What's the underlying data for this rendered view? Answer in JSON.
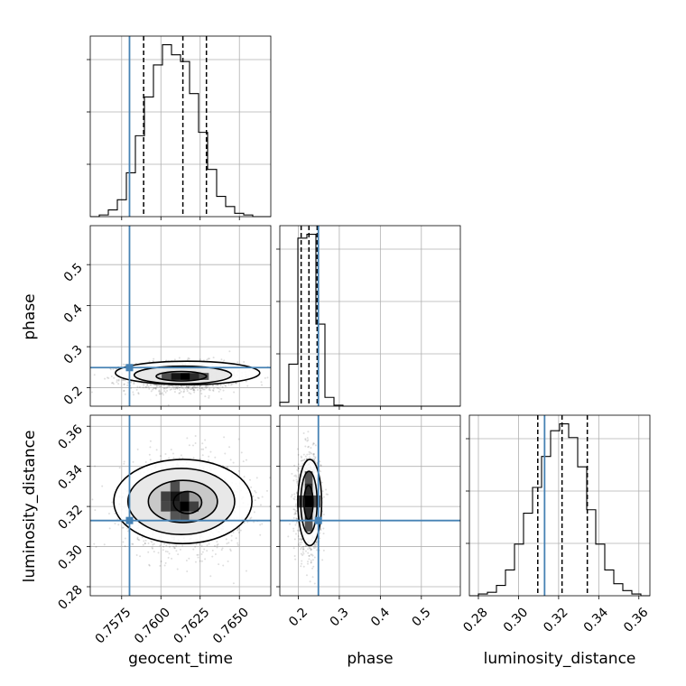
{
  "chart_data": {
    "type": "corner",
    "grid": true,
    "parameters": [
      "geocent_time",
      "phase",
      "luminosity_distance"
    ],
    "colors": {
      "truth": "#4682b4",
      "hist": "#000000",
      "grid": "#b0b0b0",
      "samples": "#000000"
    },
    "truths": {
      "geocent_time": 0.758,
      "phase": 0.249,
      "luminosity_distance": 0.313
    },
    "quantiles": {
      "geocent_time": [
        0.7589,
        0.7614,
        0.7629
      ],
      "phase": [
        0.207,
        0.226,
        0.246
      ],
      "luminosity_distance": [
        0.3096,
        0.3217,
        0.3343
      ]
    },
    "ranges": {
      "geocent_time": [
        0.7555,
        0.767
      ],
      "phase": [
        0.155,
        0.595
      ],
      "luminosity_distance": [
        0.2755,
        0.3655
      ]
    },
    "ticks": {
      "geocent_time": {
        "values": [
          0.7575,
          0.76,
          0.7625,
          0.765
        ],
        "labels": [
          "0.7575",
          "0.7600",
          "0.7625",
          "0.7650"
        ]
      },
      "phase_x": {
        "values": [
          0.2,
          0.3,
          0.4,
          0.5
        ],
        "labels": [
          "0.2",
          "0.3",
          "0.4",
          "0.5"
        ]
      },
      "phase_y": {
        "values": [
          0.2,
          0.3,
          0.4,
          0.5
        ],
        "labels": [
          "0.2",
          "0.3",
          "0.4",
          "0.5"
        ]
      },
      "luminosity_distance": {
        "values": [
          0.28,
          0.3,
          0.32,
          0.34,
          0.36
        ],
        "labels": [
          "0.28",
          "0.30",
          "0.32",
          "0.34",
          "0.36"
        ]
      }
    },
    "histograms": {
      "geocent_time": {
        "edges": [
          0.7555,
          0.756075,
          0.75665,
          0.757225,
          0.7578,
          0.758375,
          0.75895,
          0.759525,
          0.7601,
          0.760675,
          0.76125,
          0.761825,
          0.7624,
          0.762975,
          0.76355,
          0.764125,
          0.7647,
          0.765275,
          0.76585,
          0.766425,
          0.767
        ],
        "counts": [
          0,
          1,
          4,
          10,
          26,
          48,
          71,
          90,
          102,
          96,
          92,
          73,
          50,
          28,
          12,
          6,
          2,
          1,
          0,
          0
        ]
      },
      "phase": {
        "edges": [
          0.155,
          0.177,
          0.199,
          0.221,
          0.243,
          0.265,
          0.287,
          0.309,
          0.331,
          0.353,
          0.375,
          0.397,
          0.419,
          0.441,
          0.463,
          0.485,
          0.507,
          0.529,
          0.551,
          0.573,
          0.595
        ],
        "counts": [
          4,
          43,
          172,
          176,
          84,
          9,
          1,
          0,
          0,
          0,
          0,
          0,
          0,
          0,
          0,
          0,
          0,
          0,
          0,
          0
        ]
      },
      "luminosity_distance": {
        "edges": [
          0.2755,
          0.28,
          0.2845,
          0.289,
          0.2935,
          0.298,
          0.3025,
          0.307,
          0.3115,
          0.316,
          0.3205,
          0.325,
          0.3295,
          0.334,
          0.3385,
          0.343,
          0.3475,
          0.352,
          0.3565,
          0.361,
          0.3655
        ],
        "counts": [
          0,
          1,
          2,
          6,
          15,
          30,
          48,
          63,
          81,
          96,
          100,
          92,
          75,
          50,
          30,
          15,
          7,
          3,
          1,
          0
        ]
      }
    },
    "density_2d": [
      {
        "x": "geocent_time",
        "y": "phase",
        "centers": [
          [
            0.7614,
            0.227
          ]
        ],
        "contours": [
          {
            "cx": 0.7613,
            "cy": 0.228,
            "rx": 0.0016,
            "ry": 0.0115
          },
          {
            "cx": 0.7614,
            "cy": 0.231,
            "rx": 0.0031,
            "ry": 0.0215
          },
          {
            "cx": 0.7617,
            "cy": 0.236,
            "rx": 0.0046,
            "ry": 0.0285
          }
        ],
        "core": [
          {
            "x0": 0.76125,
            "x1": 0.76185,
            "y0": 0.219,
            "y1": 0.236,
            "level": 1.0
          },
          {
            "x0": 0.76065,
            "x1": 0.76125,
            "y0": 0.219,
            "y1": 0.236,
            "level": 0.85
          },
          {
            "x0": 0.76185,
            "x1": 0.76245,
            "y0": 0.219,
            "y1": 0.236,
            "level": 0.7
          },
          {
            "x0": 0.76005,
            "x1": 0.76065,
            "y0": 0.219,
            "y1": 0.236,
            "level": 0.45
          },
          {
            "x0": 0.76245,
            "x1": 0.76305,
            "y0": 0.219,
            "y1": 0.236,
            "level": 0.4
          }
        ]
      },
      {
        "x": "geocent_time",
        "y": "luminosity_distance",
        "centers": [
          [
            0.7615,
            0.321
          ]
        ],
        "contours": [
          {
            "cx": 0.7617,
            "cy": 0.322,
            "rx": 0.0009,
            "ry": 0.0055
          },
          {
            "cx": 0.7614,
            "cy": 0.3225,
            "rx": 0.0022,
            "ry": 0.0105
          },
          {
            "cx": 0.7613,
            "cy": 0.3225,
            "rx": 0.0034,
            "ry": 0.0165
          },
          {
            "cx": 0.7614,
            "cy": 0.3225,
            "rx": 0.0044,
            "ry": 0.021
          }
        ],
        "core": [
          {
            "x0": 0.7612,
            "x1": 0.7618,
            "y0": 0.3175,
            "y1": 0.3225,
            "level": 1.0
          },
          {
            "x0": 0.7606,
            "x1": 0.7612,
            "y0": 0.3225,
            "y1": 0.3275,
            "level": 0.85
          },
          {
            "x0": 0.7606,
            "x1": 0.7612,
            "y0": 0.3175,
            "y1": 0.3225,
            "level": 0.75
          },
          {
            "x0": 0.7612,
            "x1": 0.7618,
            "y0": 0.3225,
            "y1": 0.3275,
            "level": 0.7
          },
          {
            "x0": 0.76,
            "x1": 0.7606,
            "y0": 0.3225,
            "y1": 0.3275,
            "level": 0.55
          },
          {
            "x0": 0.7618,
            "x1": 0.7624,
            "y0": 0.3175,
            "y1": 0.3225,
            "level": 0.55
          },
          {
            "x0": 0.76,
            "x1": 0.7606,
            "y0": 0.3175,
            "y1": 0.3225,
            "level": 0.5
          },
          {
            "x0": 0.7606,
            "x1": 0.7612,
            "y0": 0.3275,
            "y1": 0.3325,
            "level": 0.45
          },
          {
            "x0": 0.7612,
            "x1": 0.7618,
            "y0": 0.3125,
            "y1": 0.3175,
            "level": 0.45
          },
          {
            "x0": 0.7606,
            "x1": 0.7612,
            "y0": 0.3125,
            "y1": 0.3175,
            "level": 0.4
          }
        ]
      },
      {
        "x": "phase",
        "y": "luminosity_distance",
        "centers": [
          [
            0.226,
            0.322
          ]
        ],
        "contours": [
          {
            "cx": 0.225,
            "cy": 0.322,
            "rx": 0.011,
            "ry": 0.0085
          },
          {
            "cx": 0.226,
            "cy": 0.322,
            "rx": 0.02,
            "ry": 0.0155
          },
          {
            "cx": 0.228,
            "cy": 0.322,
            "rx": 0.029,
            "ry": 0.0215
          }
        ],
        "core": [
          {
            "x0": 0.216,
            "x1": 0.235,
            "y0": 0.3195,
            "y1": 0.3255,
            "level": 1.0
          },
          {
            "x0": 0.216,
            "x1": 0.235,
            "y0": 0.3255,
            "y1": 0.3315,
            "level": 0.7
          },
          {
            "x0": 0.216,
            "x1": 0.235,
            "y0": 0.3135,
            "y1": 0.3195,
            "level": 0.7
          },
          {
            "x0": 0.216,
            "x1": 0.235,
            "y0": 0.3315,
            "y1": 0.3375,
            "level": 0.4
          },
          {
            "x0": 0.216,
            "x1": 0.235,
            "y0": 0.3075,
            "y1": 0.3135,
            "level": 0.4
          },
          {
            "x0": 0.197,
            "x1": 0.216,
            "y0": 0.3195,
            "y1": 0.3255,
            "level": 0.45
          },
          {
            "x0": 0.235,
            "x1": 0.254,
            "y0": 0.3195,
            "y1": 0.3255,
            "level": 0.45
          }
        ]
      }
    ]
  }
}
